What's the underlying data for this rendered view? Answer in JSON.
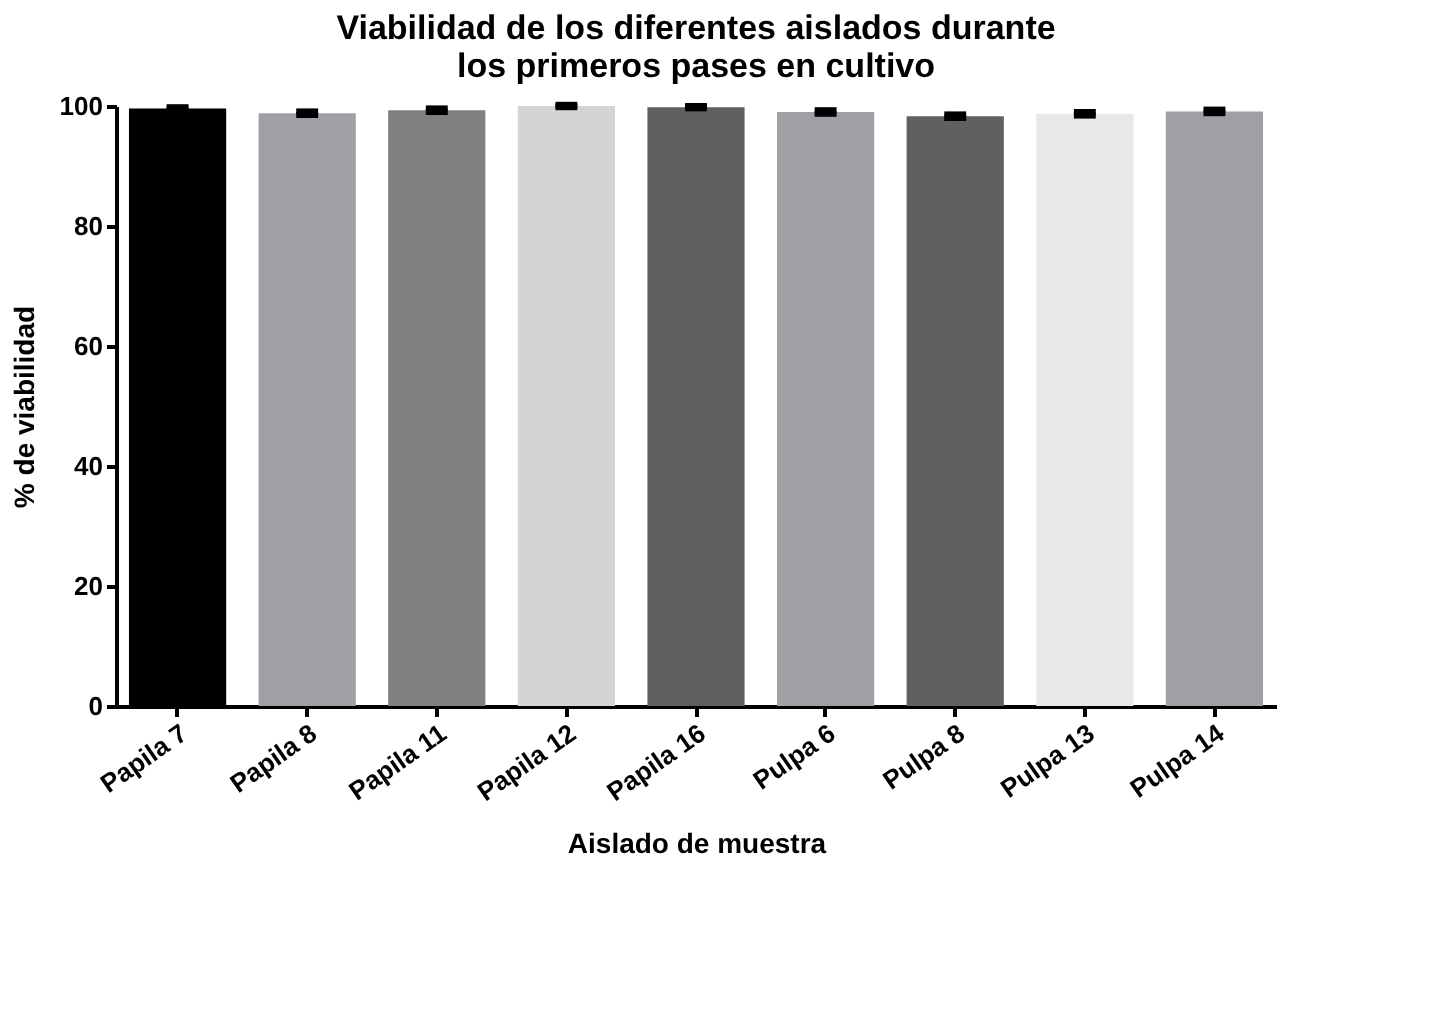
{
  "chart_data": {
    "type": "bar",
    "title": "Viabilidad de los diferentes aislados durante los primeros pases en cultivo",
    "xlabel": "Aislado de muestra",
    "ylabel": "% de viabilidad",
    "categories": [
      "Papila 7",
      "Papila 8",
      "Papila 11",
      "Papila 12",
      "Papila 16",
      "Pulpa 6",
      "Pulpa 8",
      "Pulpa 13",
      "Pulpa 14"
    ],
    "values": [
      99.6,
      98.8,
      99.3,
      100,
      99.8,
      99.0,
      98.3,
      98.7,
      99.1
    ],
    "errors": [
      0.2,
      0.3,
      0.3,
      0.2,
      0.2,
      0.3,
      0.3,
      0.3,
      0.3
    ],
    "colors": [
      "#000000",
      "#a0a0a4",
      "#808080",
      "#d4d4d4",
      "#606060",
      "#a0a0a4",
      "#606060",
      "#e8e8e8",
      "#a0a0a4"
    ],
    "ylim": [
      0,
      100
    ],
    "yticks": [
      0,
      20,
      40,
      60,
      80,
      100
    ],
    "grid": false
  }
}
